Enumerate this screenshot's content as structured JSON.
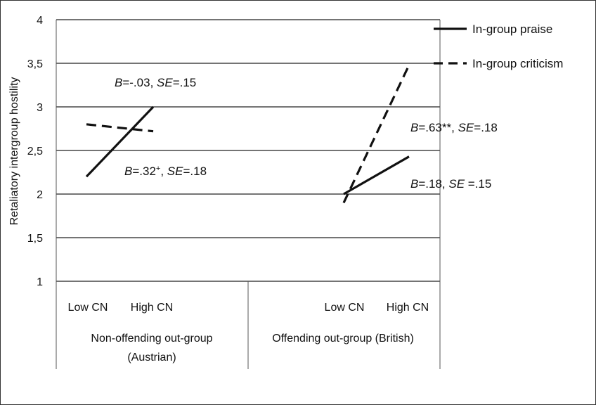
{
  "chart_data": {
    "type": "line",
    "title": "",
    "ylabel": "Retaliatory intergroup hostility",
    "ylim": [
      1,
      4
    ],
    "yticks": [
      "1",
      "1,5",
      "2",
      "2,5",
      "3",
      "3,5",
      "4"
    ],
    "ytick_values": [
      1,
      1.5,
      2,
      2.5,
      3,
      3.5,
      4
    ],
    "grid": true,
    "legend_position": "top-right",
    "groups": [
      {
        "label_line1": "Non-offending out-group",
        "label_line2": "(Austrian)",
        "categories": [
          "Low CN",
          "High CN"
        ]
      },
      {
        "label_line1": "Offending out-group (British)",
        "label_line2": "",
        "categories": [
          "Low CN",
          "High CN"
        ]
      }
    ],
    "series": [
      {
        "name": "In-group praise",
        "style": "solid",
        "values": [
          [
            2.2,
            3.0
          ],
          [
            2.0,
            2.43
          ]
        ]
      },
      {
        "name": "In-group criticism",
        "style": "dashed",
        "values": [
          [
            2.8,
            2.72
          ],
          [
            1.9,
            3.48
          ]
        ]
      }
    ],
    "annotations": [
      {
        "parts": [
          {
            "t": "B",
            "i": true
          },
          {
            "t": "=-.03, "
          },
          {
            "t": "SE",
            "i": true
          },
          {
            "t": "=.15"
          }
        ]
      },
      {
        "parts": [
          {
            "t": "B",
            "i": true
          },
          {
            "t": "=.32"
          },
          {
            "t": "+",
            "sup": true
          },
          {
            "t": ", "
          },
          {
            "t": "SE",
            "i": true
          },
          {
            "t": "=.18"
          }
        ]
      },
      {
        "parts": [
          {
            "t": "B",
            "i": true
          },
          {
            "t": "=.63**, "
          },
          {
            "t": "SE",
            "i": true
          },
          {
            "t": "=.18"
          }
        ]
      },
      {
        "parts": [
          {
            "t": "B",
            "i": true
          },
          {
            "t": "=.18, "
          },
          {
            "t": "SE",
            "i": true
          },
          {
            "t": " =.15"
          }
        ]
      }
    ]
  }
}
